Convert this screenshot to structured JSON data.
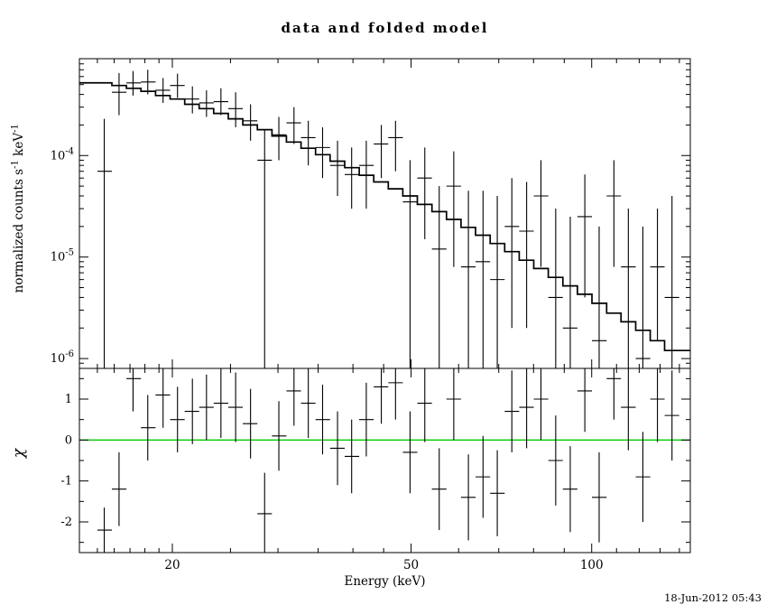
{
  "footer": {
    "timestamp": "18-Jun-2012 05:43"
  },
  "labels": {
    "y_top_parts": {
      "p1": "normalized counts s",
      "sup1": "-1",
      "p2": " keV",
      "sup2": "-1"
    }
  },
  "colors": {
    "background": "#ffffff",
    "frame": "#000000",
    "model_line": "#000000",
    "data": "#000000",
    "zero_line": "#00cc00",
    "text": "#000000"
  },
  "chart_data": {
    "type": "line",
    "title": "data and folded model",
    "xlabel": "Energy (keV)",
    "ylabel_top": "normalized counts s^-1 keV^-1",
    "ylabel_bottom": "χ",
    "legend": "none",
    "grid": false,
    "axes": {
      "x": {
        "scale": "log",
        "min": 14,
        "max": 146,
        "major_ticks": [
          20,
          50,
          100
        ],
        "major_tick_labels": [
          "20",
          "50",
          "100"
        ],
        "minor_ticks": [
          15,
          16,
          17,
          18,
          19,
          25,
          30,
          35,
          40,
          45,
          60,
          70,
          80,
          90,
          110,
          120,
          130,
          140
        ]
      },
      "y_top": {
        "scale": "log",
        "min": 8e-07,
        "max": 0.0009,
        "major_ticks": [
          0.0001,
          1e-05,
          1e-06
        ],
        "tick_exponents": [
          "-4",
          "-5",
          "-6"
        ]
      },
      "y_bottom": {
        "scale": "linear",
        "min": -2.75,
        "max": 1.75,
        "major_ticks": [
          1,
          0,
          -1,
          -2
        ],
        "minor_ticks": [
          1.5,
          0.5,
          -0.5,
          -1.5,
          -2.5
        ]
      }
    },
    "series": [
      {
        "name": "folded model",
        "type": "line",
        "style": "step-histogram",
        "panel": "top",
        "bin_edges_keV": [
          15.0,
          15.86,
          16.77,
          17.73,
          18.75,
          19.83,
          20.97,
          22.17,
          23.44,
          24.79,
          26.21,
          27.72,
          29.31,
          30.99,
          32.77,
          34.65,
          36.64,
          38.75,
          40.97,
          43.32,
          45.81,
          48.44,
          51.22,
          54.16,
          57.27,
          60.56,
          64.04,
          67.72,
          71.61,
          75.72,
          80.07,
          84.66,
          89.52,
          94.66,
          100.1,
          105.9,
          111.9,
          118.4,
          125.2,
          132.3,
          139.9
        ],
        "values": [
          0.00052,
          0.00049,
          0.00046,
          0.00043,
          0.00039,
          0.00036,
          0.00032,
          0.00029,
          0.00026,
          0.00023,
          0.0002,
          0.00018,
          0.000156,
          0.000136,
          0.000118,
          0.000102,
          8.8e-05,
          7.6e-05,
          6.4e-05,
          5.5e-05,
          4.7e-05,
          4e-05,
          3.3e-05,
          2.8e-05,
          2.35e-05,
          1.96e-05,
          1.64e-05,
          1.36e-05,
          1.13e-05,
          9.3e-06,
          7.7e-06,
          6.3e-06,
          5.2e-06,
          4.3e-06,
          3.5e-06,
          2.8e-06,
          2.3e-06,
          1.9e-06,
          1.5e-06,
          1.2e-06
        ]
      },
      {
        "name": "spectrum data",
        "type": "scatter",
        "error_bars": true,
        "panel": "top",
        "x_keV": [
          15.4,
          16.3,
          17.2,
          18.2,
          19.3,
          20.4,
          21.6,
          22.8,
          24.1,
          25.5,
          27.0,
          28.5,
          30.1,
          31.9,
          33.7,
          35.6,
          37.7,
          39.8,
          42.1,
          44.6,
          47.1,
          49.8,
          52.7,
          55.7,
          58.9,
          62.3,
          65.9,
          69.6,
          73.6,
          77.9,
          82.3,
          87.1,
          92.1,
          97.4,
          102.9,
          108.9,
          115.1,
          121.7,
          128.7,
          136.1
        ],
        "y": [
          7e-05,
          0.00042,
          0.00052,
          0.00053,
          0.00044,
          0.00049,
          0.00036,
          0.00033,
          0.00034,
          0.00029,
          0.00022,
          9e-05,
          0.00016,
          0.00021,
          0.00015,
          0.00012,
          8e-05,
          6.5e-05,
          8e-05,
          0.00013,
          0.00015,
          3.5e-05,
          6e-05,
          1.2e-05,
          5e-05,
          8e-06,
          9e-06,
          6e-06,
          2e-05,
          1.8e-05,
          4e-05,
          4e-06,
          2e-06,
          2.5e-05,
          1.5e-06,
          4e-05,
          8e-06,
          1e-06,
          8e-06,
          4e-06
        ],
        "y_low": [
          1e-07,
          0.00025,
          0.00039,
          0.0004,
          0.00033,
          0.00037,
          0.00026,
          0.00024,
          0.00025,
          0.00019,
          0.00014,
          1e-07,
          9e-05,
          0.00013,
          8e-05,
          6e-05,
          4e-05,
          3e-05,
          3e-05,
          6e-05,
          7e-05,
          1e-07,
          1.5e-05,
          1e-07,
          8e-06,
          1e-07,
          1e-07,
          1e-07,
          2e-06,
          2e-06,
          8e-06,
          1e-07,
          1e-07,
          4e-06,
          1e-07,
          8e-06,
          1e-07,
          1e-07,
          1.5e-06,
          1e-07
        ],
        "y_high": [
          0.00023,
          0.00065,
          0.00068,
          0.0007,
          0.00058,
          0.00064,
          0.00048,
          0.00044,
          0.00046,
          0.00042,
          0.00032,
          0.00018,
          0.00024,
          0.0003,
          0.00022,
          0.00019,
          0.00014,
          0.00012,
          0.00014,
          0.0002,
          0.00022,
          9e-05,
          0.00012,
          5e-05,
          0.00011,
          4.5e-05,
          4.5e-05,
          4e-05,
          6e-05,
          5.5e-05,
          9e-05,
          3e-05,
          2.5e-05,
          6.5e-05,
          2e-05,
          9e-05,
          3e-05,
          2e-05,
          3e-05,
          4e-05
        ]
      },
      {
        "name": "chi residuals",
        "type": "scatter",
        "error_bars": true,
        "panel": "bottom",
        "x_keV": [
          15.4,
          16.3,
          17.2,
          18.2,
          19.3,
          20.4,
          21.6,
          22.8,
          24.1,
          25.5,
          27.0,
          28.5,
          30.1,
          31.9,
          33.7,
          35.6,
          37.7,
          39.8,
          42.1,
          44.6,
          47.1,
          49.8,
          52.7,
          55.7,
          58.9,
          62.3,
          65.9,
          69.6,
          73.6,
          77.9,
          82.3,
          87.1,
          92.1,
          97.4,
          102.9,
          108.9,
          115.1,
          121.7,
          128.7,
          136.1
        ],
        "chi": [
          -2.2,
          -1.2,
          1.5,
          0.3,
          1.1,
          0.5,
          0.7,
          0.8,
          0.9,
          0.8,
          0.4,
          -1.8,
          0.1,
          1.2,
          0.9,
          0.5,
          -0.2,
          -0.4,
          0.5,
          1.3,
          1.4,
          -0.3,
          0.9,
          -1.2,
          1.0,
          -1.4,
          -0.9,
          -1.3,
          0.7,
          0.8,
          1.0,
          -0.5,
          -1.2,
          1.2,
          -1.4,
          1.5,
          0.8,
          -0.9,
          1.0,
          0.6
        ],
        "chi_err": [
          0.55,
          0.9,
          0.8,
          0.8,
          0.8,
          0.8,
          0.8,
          0.8,
          0.85,
          0.85,
          0.85,
          1.0,
          0.85,
          0.85,
          0.85,
          0.85,
          0.9,
          0.9,
          0.9,
          0.9,
          0.9,
          1.0,
          0.95,
          1.0,
          1.0,
          1.05,
          1.0,
          1.05,
          1.0,
          1.0,
          1.0,
          1.1,
          1.05,
          1.0,
          1.1,
          1.0,
          1.05,
          1.1,
          1.05,
          1.1
        ]
      }
    ]
  }
}
